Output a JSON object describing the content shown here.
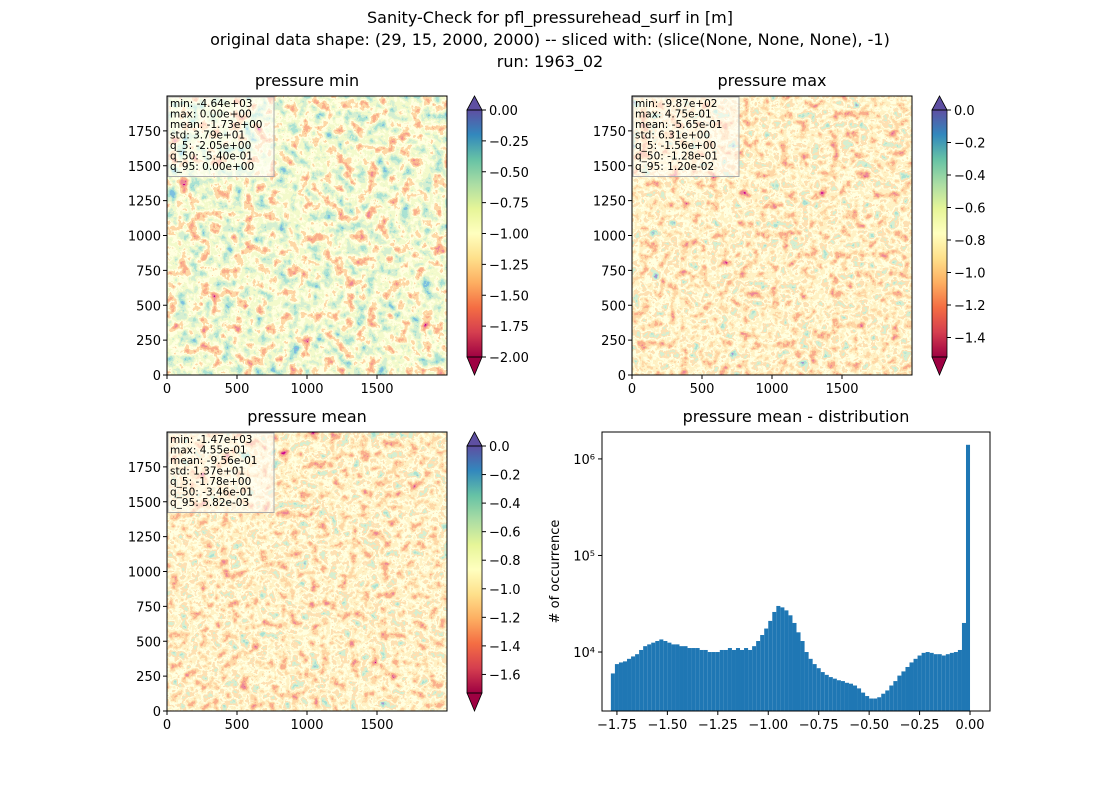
{
  "figure": {
    "title": [
      "Sanity-Check for pfl_pressurehead_surf in [m]",
      "original data shape: (29, 15, 2000, 2000) -- sliced with: (slice(None, None, None), -1)",
      "run: 1963_02"
    ]
  },
  "chart_data": [
    {
      "type": "heatmap",
      "title": "pressure min",
      "xlim": [
        0,
        2000
      ],
      "ylim": [
        0,
        2000
      ],
      "xticks": [
        0,
        500,
        1000,
        1500
      ],
      "yticks": [
        0,
        250,
        500,
        750,
        1000,
        1250,
        1500,
        1750
      ],
      "colormap": "Spectral",
      "colorbar": {
        "lim": [
          -2.0,
          0.0
        ],
        "extend": "both",
        "ticks": [
          {
            "value": 0.0,
            "label": "0.00"
          },
          {
            "value": -0.25,
            "label": "−0.25"
          },
          {
            "value": -0.5,
            "label": "−0.50"
          },
          {
            "value": -0.75,
            "label": "−0.75"
          },
          {
            "value": -1.0,
            "label": "−1.00"
          },
          {
            "value": -1.25,
            "label": "−1.25"
          },
          {
            "value": -1.5,
            "label": "−1.50"
          },
          {
            "value": -1.75,
            "label": "−1.75"
          },
          {
            "value": -2.0,
            "label": "−2.00"
          }
        ]
      },
      "stats": [
        "min: -4.64e+03",
        "max: 0.00e+00",
        "mean: -1.73e+00",
        "std: 3.79e+01",
        "q_5: -2.05e+00",
        "q_50: -5.40e-01",
        "q_95: 0.00e+00"
      ]
    },
    {
      "type": "heatmap",
      "title": "pressure max",
      "xlim": [
        0,
        2000
      ],
      "ylim": [
        0,
        2000
      ],
      "xticks": [
        0,
        500,
        1000,
        1500
      ],
      "yticks": [
        0,
        250,
        500,
        750,
        1000,
        1250,
        1500,
        1750
      ],
      "colormap": "Spectral",
      "colorbar": {
        "lim": [
          -1.52,
          0.0
        ],
        "extend": "both",
        "ticks": [
          {
            "value": 0.0,
            "label": "0.0"
          },
          {
            "value": -0.2,
            "label": "−0.2"
          },
          {
            "value": -0.4,
            "label": "−0.4"
          },
          {
            "value": -0.6,
            "label": "−0.6"
          },
          {
            "value": -0.8,
            "label": "−0.8"
          },
          {
            "value": -1.0,
            "label": "−1.0"
          },
          {
            "value": -1.2,
            "label": "−1.2"
          },
          {
            "value": -1.4,
            "label": "−1.4"
          }
        ]
      },
      "stats": [
        "min: -9.87e+02",
        "max: 4.75e-01",
        "mean: -5.65e-01",
        "std: 6.31e+00",
        "q_5: -1.56e+00",
        "q_50: -1.28e-01",
        "q_95: 1.20e-02"
      ]
    },
    {
      "type": "heatmap",
      "title": "pressure mean",
      "xlim": [
        0,
        2000
      ],
      "ylim": [
        0,
        2000
      ],
      "xticks": [
        0,
        500,
        1000,
        1500
      ],
      "yticks": [
        0,
        250,
        500,
        750,
        1000,
        1250,
        1500,
        1750
      ],
      "colormap": "Spectral",
      "colorbar": {
        "lim": [
          -1.73,
          0.0
        ],
        "extend": "both",
        "ticks": [
          {
            "value": 0.0,
            "label": "0.0"
          },
          {
            "value": -0.2,
            "label": "−0.2"
          },
          {
            "value": -0.4,
            "label": "−0.4"
          },
          {
            "value": -0.6,
            "label": "−0.6"
          },
          {
            "value": -0.8,
            "label": "−0.8"
          },
          {
            "value": -1.0,
            "label": "−1.0"
          },
          {
            "value": -1.2,
            "label": "−1.2"
          },
          {
            "value": -1.4,
            "label": "−1.4"
          },
          {
            "value": -1.6,
            "label": "−1.6"
          }
        ]
      },
      "stats": [
        "min: -1.47e+03",
        "max: 4.55e-01",
        "mean: -9.56e-01",
        "std: 1.37e+01",
        "q_5: -1.78e+00",
        "q_50: -3.46e-01",
        "q_95: 5.82e-03"
      ]
    },
    {
      "type": "histogram",
      "title": "pressure mean - distribution",
      "y_label": "# of occurrence",
      "color": "#1f77b4",
      "log_y": true,
      "xlim": [
        -1.824,
        0.099
      ],
      "ylim": [
        2450,
        1900000
      ],
      "xticks": [
        {
          "value": -1.75,
          "label": "−1.75"
        },
        {
          "value": -1.5,
          "label": "−1.50"
        },
        {
          "value": -1.25,
          "label": "−1.25"
        },
        {
          "value": -1.0,
          "label": "−1.00"
        },
        {
          "value": -0.75,
          "label": "−0.75"
        },
        {
          "value": -0.5,
          "label": "−0.50"
        },
        {
          "value": -0.25,
          "label": "−0.25"
        },
        {
          "value": 0.0,
          "label": "0.00"
        }
      ],
      "yticks": [
        {
          "value": 10000,
          "label": "10⁴"
        },
        {
          "value": 100000,
          "label": "10⁵"
        },
        {
          "value": 1000000,
          "label": "10⁶"
        }
      ],
      "bins": [
        -1.78,
        -1.76,
        -1.74,
        -1.72,
        -1.7,
        -1.68,
        -1.66,
        -1.64,
        -1.62,
        -1.6,
        -1.58,
        -1.56,
        -1.54,
        -1.52,
        -1.5,
        -1.48,
        -1.46,
        -1.44,
        -1.42,
        -1.4,
        -1.38,
        -1.36,
        -1.34,
        -1.32,
        -1.3,
        -1.28,
        -1.26,
        -1.24,
        -1.22,
        -1.2,
        -1.18,
        -1.16,
        -1.14,
        -1.12,
        -1.1,
        -1.08,
        -1.06,
        -1.04,
        -1.02,
        -1.0,
        -0.98,
        -0.96,
        -0.94,
        -0.92,
        -0.9,
        -0.88,
        -0.86,
        -0.84,
        -0.82,
        -0.8,
        -0.78,
        -0.76,
        -0.74,
        -0.72,
        -0.7,
        -0.68,
        -0.66,
        -0.64,
        -0.62,
        -0.6,
        -0.58,
        -0.56,
        -0.54,
        -0.52,
        -0.5,
        -0.48,
        -0.46,
        -0.44,
        -0.42,
        -0.4,
        -0.38,
        -0.36,
        -0.34,
        -0.32,
        -0.3,
        -0.28,
        -0.26,
        -0.24,
        -0.22,
        -0.2,
        -0.18,
        -0.16,
        -0.14,
        -0.12,
        -0.1,
        -0.08,
        -0.06,
        -0.04,
        -0.02,
        0.0
      ],
      "values": [
        6000,
        7500,
        7800,
        8000,
        8500,
        9000,
        9500,
        10500,
        11500,
        12000,
        12500,
        13000,
        13500,
        13000,
        12500,
        12000,
        12000,
        11500,
        11500,
        11000,
        11000,
        11000,
        10500,
        10500,
        10000,
        10000,
        10000,
        10500,
        10500,
        11000,
        10500,
        11000,
        10500,
        11000,
        10500,
        11500,
        13000,
        15000,
        17500,
        21000,
        26000,
        30000,
        29000,
        27000,
        24000,
        20000,
        16000,
        13000,
        10000,
        8500,
        7500,
        6800,
        6200,
        5800,
        5500,
        5300,
        5100,
        5000,
        4800,
        4700,
        4500,
        4200,
        3800,
        3500,
        3300,
        3300,
        3400,
        3700,
        4000,
        4500,
        5000,
        5700,
        6300,
        7000,
        7800,
        8500,
        9200,
        9800,
        10000,
        9800,
        9500,
        9500,
        9200,
        9500,
        9800,
        10000,
        10500,
        20000,
        1400000
      ]
    }
  ]
}
